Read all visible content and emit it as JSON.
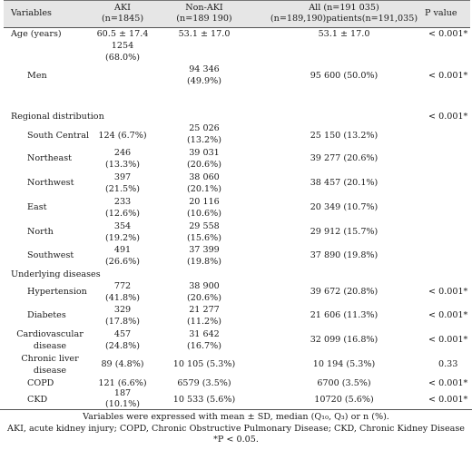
{
  "header": {
    "variables": "Variables",
    "aki": "AKI",
    "aki_n": "(n=1845)",
    "nonaki": "Non-AKI",
    "nonaki_n": "(n=189 190)",
    "all_1": "All (n=191 035)",
    "all_2": "(n=189,190)patients(n=191,035)",
    "pvalue": "P value"
  },
  "rows": [
    {
      "label": "Age (years)",
      "aki": "60.5 ± 17.4",
      "nonaki": "53.1 ± 17.0",
      "all": "53.1 ± 17.0",
      "p": "< 0.001*"
    },
    {
      "label": "Men",
      "aki_1": "1254",
      "aki_2": "(68.0%)",
      "nonaki_1": "94 346",
      "nonaki_2": "(49.9%)",
      "all": "95 600 (50.0%)",
      "p": "< 0.001*"
    },
    {
      "label": "Regional distribution",
      "p": "< 0.001*"
    },
    {
      "label": "South Central",
      "aki": "124 (6.7%)",
      "nonaki_1": "25 026",
      "nonaki_2": "(13.2%)",
      "all": "25 150 (13.2%)"
    },
    {
      "label": "Northeast",
      "aki_1": "246",
      "aki_2": "(13.3%)",
      "nonaki_1": "39 031",
      "nonaki_2": "(20.6%)",
      "all": "39 277 (20.6%)"
    },
    {
      "label": "Northwest",
      "aki_1": "397",
      "aki_2": "(21.5%)",
      "nonaki_1": "38 060",
      "nonaki_2": "(20.1%)",
      "all": "38 457 (20.1%)"
    },
    {
      "label": "East",
      "aki_1": "233",
      "aki_2": "(12.6%)",
      "nonaki_1": "20 116",
      "nonaki_2": "(10.6%)",
      "all": "20 349 (10.7%)"
    },
    {
      "label": "North",
      "aki_1": "354",
      "aki_2": "(19.2%)",
      "nonaki_1": "29 558",
      "nonaki_2": "(15.6%)",
      "all": "29 912 (15.7%)"
    },
    {
      "label": "Southwest",
      "aki_1": "491",
      "aki_2": "(26.6%)",
      "nonaki_1": "37 399",
      "nonaki_2": "(19.8%)",
      "all": "37 890 (19.8%)"
    },
    {
      "label": "Underlying diseases"
    },
    {
      "label": "Hypertension",
      "aki_1": "772",
      "aki_2": "(41.8%)",
      "nonaki_1": "38 900",
      "nonaki_2": "(20.6%)",
      "all": "39 672 (20.8%)",
      "p": "< 0.001*"
    },
    {
      "label": "Diabetes",
      "aki_1": "329",
      "aki_2": "(17.8%)",
      "nonaki_1": "21 277",
      "nonaki_2": "(11.2%)",
      "all": "21 606 (11.3%)",
      "p": "< 0.001*"
    },
    {
      "label_1": "Cardiovascular",
      "label_2": "disease",
      "aki_1": "457",
      "aki_2": "(24.8%)",
      "nonaki_1": "31 642",
      "nonaki_2": "(16.7%)",
      "all": "32 099 (16.8%)",
      "p": "< 0.001*"
    },
    {
      "label_1": "Chronic liver",
      "label_2": "disease",
      "aki": "89 (4.8%)",
      "nonaki": "10 105 (5.3%)",
      "all": "10 194 (5.3%)",
      "p": "0.33"
    },
    {
      "label": "COPD",
      "aki": "121 (6.6%)",
      "nonaki": "6579 (3.5%)",
      "all": "6700 (3.5%)",
      "p": "< 0.001*"
    },
    {
      "label": "CKD",
      "aki_1": "187",
      "aki_2": "(10.1%)",
      "nonaki": "10 533 (5.6%)",
      "all": "10720 (5.6%)",
      "p": "< 0.001*"
    }
  ],
  "footnotes": [
    "Variables were expressed with mean ± SD, median (Q₁₀, Q₃) or n (%).",
    "AKI, acute kidney injury; COPD, Chronic Obstructive Pulmonary Disease; CKD, Chronic Kidney Disease",
    "*P < 0.05."
  ]
}
